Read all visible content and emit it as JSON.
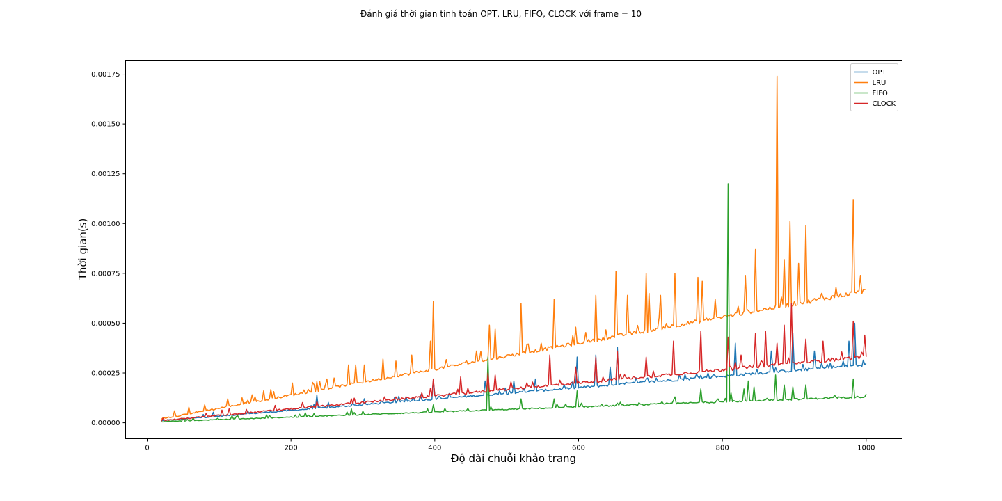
{
  "chart_data": {
    "type": "line",
    "title": "Đánh giá thời gian tính toán OPT, LRU, FIFO, CLOCK với frame = 10",
    "xlabel": "Độ dài chuỗi khảo trang",
    "ylabel": "Thời gian(s)",
    "xlim": [
      -30,
      1050
    ],
    "ylim": [
      -8e-05,
      0.00182
    ],
    "x_ticks": [
      0,
      200,
      400,
      600,
      800,
      1000
    ],
    "x_tick_labels": [
      "0",
      "200",
      "400",
      "600",
      "800",
      "1000"
    ],
    "y_ticks": [
      0.0,
      0.00025,
      0.0005,
      0.00075,
      0.001,
      0.00125,
      0.0015,
      0.00175
    ],
    "y_tick_labels": [
      "0.00000",
      "0.00025",
      "0.00050",
      "0.00075",
      "0.00100",
      "0.00125",
      "0.00150",
      "0.00175"
    ],
    "grid": false,
    "legend_position": "top-right",
    "x_start": 20,
    "x_end": 1000,
    "x_step": 2,
    "series": [
      {
        "name": "OPT",
        "color": "#1f77b4",
        "start_value": 1e-05,
        "end_value": 0.00029,
        "noise": 5e-06,
        "spikes": [
          [
            236,
            0.00014
          ],
          [
            398,
            0.00021
          ],
          [
            470,
            0.00021
          ],
          [
            510,
            0.00021
          ],
          [
            540,
            0.00022
          ],
          [
            598,
            0.00033
          ],
          [
            624,
            0.00034
          ],
          [
            644,
            0.00028
          ],
          [
            654,
            0.00038
          ],
          [
            818,
            0.0004
          ],
          [
            868,
            0.00036
          ],
          [
            898,
            0.00045
          ],
          [
            928,
            0.00036
          ],
          [
            976,
            0.00041
          ],
          [
            984,
            0.0005
          ]
        ]
      },
      {
        "name": "LRU",
        "color": "#ff7f0e",
        "start_value": 2e-05,
        "end_value": 0.00066,
        "noise": 8e-06,
        "spikes": [
          [
            38,
            6e-05
          ],
          [
            80,
            9e-05
          ],
          [
            112,
            0.00012
          ],
          [
            162,
            0.00016
          ],
          [
            202,
            0.0002
          ],
          [
            250,
            0.00022
          ],
          [
            280,
            0.00029
          ],
          [
            290,
            0.00029
          ],
          [
            302,
            0.00029
          ],
          [
            328,
            0.00032
          ],
          [
            346,
            0.00031
          ],
          [
            368,
            0.00034
          ],
          [
            394,
            0.00041
          ],
          [
            398,
            0.00061
          ],
          [
            458,
            0.00036
          ],
          [
            476,
            0.00049
          ],
          [
            484,
            0.00047
          ],
          [
            520,
            0.0006
          ],
          [
            548,
            0.0004
          ],
          [
            566,
            0.00062
          ],
          [
            596,
            0.00048
          ],
          [
            624,
            0.00064
          ],
          [
            652,
            0.00076
          ],
          [
            668,
            0.00064
          ],
          [
            694,
            0.00075
          ],
          [
            698,
            0.00065
          ],
          [
            714,
            0.00064
          ],
          [
            734,
            0.00075
          ],
          [
            766,
            0.00073
          ],
          [
            772,
            0.00071
          ],
          [
            790,
            0.00062
          ],
          [
            832,
            0.00074
          ],
          [
            846,
            0.00087
          ],
          [
            876,
            0.00174
          ],
          [
            886,
            0.00082
          ],
          [
            894,
            0.00101
          ],
          [
            906,
            0.0008
          ],
          [
            916,
            0.00099
          ],
          [
            938,
            0.00065
          ],
          [
            958,
            0.00068
          ],
          [
            982,
            0.00112
          ],
          [
            992,
            0.00074
          ]
        ]
      },
      {
        "name": "FIFO",
        "color": "#2ca02c",
        "start_value": 5e-06,
        "end_value": 0.00013,
        "noise": 3e-06,
        "spikes": [
          [
            284,
            7e-05
          ],
          [
            398,
            9e-05
          ],
          [
            474,
            0.00033
          ],
          [
            520,
            0.00012
          ],
          [
            566,
            0.00012
          ],
          [
            598,
            0.00016
          ],
          [
            734,
            0.00013
          ],
          [
            770,
            0.00017
          ],
          [
            808,
            0.0012
          ],
          [
            812,
            0.00015
          ],
          [
            830,
            0.00017
          ],
          [
            836,
            0.00021
          ],
          [
            844,
            0.00018
          ],
          [
            874,
            0.00024
          ],
          [
            886,
            0.00019
          ],
          [
            898,
            0.00018
          ],
          [
            916,
            0.00019
          ],
          [
            982,
            0.00022
          ]
        ]
      },
      {
        "name": "CLOCK",
        "color": "#d62728",
        "start_value": 1e-05,
        "end_value": 0.00033,
        "noise": 6e-06,
        "spikes": [
          [
            114,
            7e-05
          ],
          [
            284,
            0.00012
          ],
          [
            330,
            0.00013
          ],
          [
            346,
            0.00013
          ],
          [
            398,
            0.00022
          ],
          [
            436,
            0.00023
          ],
          [
            474,
            0.00025
          ],
          [
            484,
            0.00024
          ],
          [
            560,
            0.00034
          ],
          [
            596,
            0.00028
          ],
          [
            624,
            0.00033
          ],
          [
            654,
            0.00036
          ],
          [
            694,
            0.00033
          ],
          [
            732,
            0.00041
          ],
          [
            770,
            0.00046
          ],
          [
            808,
            0.00043
          ],
          [
            826,
            0.00034
          ],
          [
            846,
            0.00045
          ],
          [
            860,
            0.00046
          ],
          [
            876,
            0.0004
          ],
          [
            886,
            0.00049
          ],
          [
            896,
            0.0006
          ],
          [
            916,
            0.00042
          ],
          [
            940,
            0.00041
          ],
          [
            982,
            0.00051
          ],
          [
            998,
            0.00044
          ]
        ]
      }
    ]
  }
}
